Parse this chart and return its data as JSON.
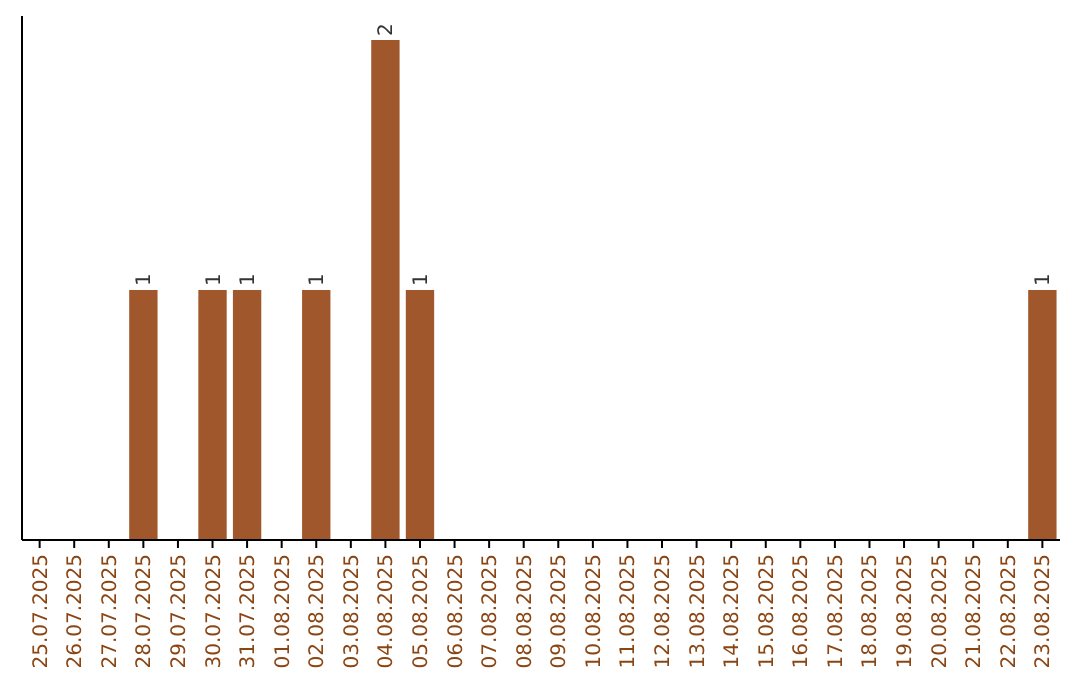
{
  "chart_data": {
    "type": "bar",
    "categories": [
      "25.07.2025",
      "26.07.2025",
      "27.07.2025",
      "28.07.2025",
      "29.07.2025",
      "30.07.2025",
      "31.07.2025",
      "01.08.2025",
      "02.08.2025",
      "03.08.2025",
      "04.08.2025",
      "05.08.2025",
      "06.08.2025",
      "07.08.2025",
      "08.08.2025",
      "09.08.2025",
      "10.08.2025",
      "11.08.2025",
      "12.08.2025",
      "13.08.2025",
      "14.08.2025",
      "15.08.2025",
      "16.08.2025",
      "17.08.2025",
      "18.08.2025",
      "19.08.2025",
      "20.08.2025",
      "21.08.2025",
      "22.08.2025",
      "23.08.2025"
    ],
    "values": [
      0,
      0,
      0,
      1,
      0,
      1,
      1,
      0,
      1,
      0,
      2,
      1,
      0,
      0,
      0,
      0,
      0,
      0,
      0,
      0,
      0,
      0,
      0,
      0,
      0,
      0,
      0,
      0,
      0,
      1
    ],
    "value_labels": [
      null,
      null,
      null,
      "1",
      null,
      "1",
      "1",
      null,
      "1",
      null,
      "2",
      "1",
      null,
      null,
      null,
      null,
      null,
      null,
      null,
      null,
      null,
      null,
      null,
      null,
      null,
      null,
      null,
      null,
      null,
      "1"
    ],
    "color": "#a0572b"
  }
}
